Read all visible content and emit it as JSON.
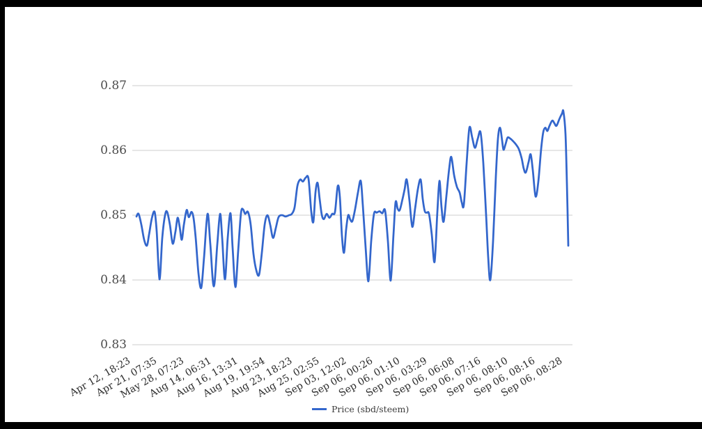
{
  "window": {
    "background": "#ffffff",
    "frame_color": "#000000"
  },
  "chart_data": {
    "type": "line",
    "title": "",
    "legend": {
      "position": "bottom",
      "entries": [
        {
          "label": "Price (sbd/steem)",
          "color": "#3366cc"
        }
      ]
    },
    "yAxis": {
      "tick_labels": [
        "0.87",
        "0.86",
        "0.85",
        "0.84",
        "0.83"
      ],
      "tick_values": [
        0.87,
        0.86,
        0.85,
        0.84,
        0.83
      ],
      "min": 0.83,
      "max": 0.87,
      "grid": true
    },
    "xAxis": {
      "tick_labels": [
        "Apr 12, 18:23",
        "Apr 21, 07:35",
        "May 28, 07:23",
        "Aug 14, 06:31",
        "Aug 16, 13:31",
        "Aug 19, 19:54",
        "Aug 23, 18:23",
        "Aug 25, 02:55",
        "Sep 03, 12:02",
        "Sep 06, 00:26",
        "Sep 06, 01:10",
        "Sep 06, 03:29",
        "Sep 06, 06:08",
        "Sep 06, 07:16",
        "Sep 06, 08:10",
        "Sep 06, 08:16",
        "Sep 06, 08:28"
      ],
      "rotation_deg": -30
    },
    "colors": {
      "grid": "#cccccc",
      "y_label": "#4c4c4c",
      "x_label": "#2b2b2b",
      "legend_label": "#3c3c3c"
    },
    "series": [
      {
        "name": "Price (sbd/steem)",
        "color": "#3366cc",
        "points": [
          [
            196,
            0.8498
          ],
          [
            199,
            0.8502
          ],
          [
            203,
            0.8485
          ],
          [
            207,
            0.8462
          ],
          [
            211,
            0.8453
          ],
          [
            214,
            0.847
          ],
          [
            218,
            0.8495
          ],
          [
            222,
            0.8505
          ],
          [
            225,
            0.8475
          ],
          [
            229,
            0.8401
          ],
          [
            233,
            0.8465
          ],
          [
            237,
            0.85
          ],
          [
            240,
            0.8505
          ],
          [
            244,
            0.8485
          ],
          [
            248,
            0.8456
          ],
          [
            252,
            0.8475
          ],
          [
            255,
            0.8496
          ],
          [
            258,
            0.8482
          ],
          [
            261,
            0.8462
          ],
          [
            264,
            0.8485
          ],
          [
            268,
            0.8508
          ],
          [
            271,
            0.8497
          ],
          [
            275,
            0.8505
          ],
          [
            278,
            0.8495
          ],
          [
            281,
            0.8465
          ],
          [
            285,
            0.841
          ],
          [
            289,
            0.8388
          ],
          [
            293,
            0.8435
          ],
          [
            298,
            0.8502
          ],
          [
            302,
            0.8455
          ],
          [
            307,
            0.839
          ],
          [
            312,
            0.8455
          ],
          [
            316,
            0.8502
          ],
          [
            319,
            0.8465
          ],
          [
            323,
            0.8401
          ],
          [
            327,
            0.8465
          ],
          [
            331,
            0.8503
          ],
          [
            334,
            0.845
          ],
          [
            338,
            0.8389
          ],
          [
            342,
            0.8445
          ],
          [
            346,
            0.8503
          ],
          [
            349,
            0.8509
          ],
          [
            352,
            0.8502
          ],
          [
            356,
            0.8505
          ],
          [
            360,
            0.8485
          ],
          [
            364,
            0.844
          ],
          [
            368,
            0.8415
          ],
          [
            372,
            0.8408
          ],
          [
            376,
            0.8442
          ],
          [
            380,
            0.8485
          ],
          [
            384,
            0.85
          ],
          [
            388,
            0.8485
          ],
          [
            392,
            0.8465
          ],
          [
            396,
            0.848
          ],
          [
            400,
            0.8497
          ],
          [
            405,
            0.85
          ],
          [
            410,
            0.8498
          ],
          [
            415,
            0.85
          ],
          [
            419,
            0.8502
          ],
          [
            423,
            0.8512
          ],
          [
            427,
            0.8545
          ],
          [
            431,
            0.8555
          ],
          [
            435,
            0.8552
          ],
          [
            439,
            0.8558
          ],
          [
            443,
            0.8556
          ],
          [
            447,
            0.8505
          ],
          [
            450,
            0.849
          ],
          [
            453,
            0.8535
          ],
          [
            456,
            0.855
          ],
          [
            459,
            0.8525
          ],
          [
            462,
            0.8501
          ],
          [
            465,
            0.8494
          ],
          [
            469,
            0.8502
          ],
          [
            473,
            0.8496
          ],
          [
            477,
            0.8502
          ],
          [
            481,
            0.8505
          ],
          [
            485,
            0.8545
          ],
          [
            488,
            0.8528
          ],
          [
            491,
            0.8468
          ],
          [
            494,
            0.8442
          ],
          [
            497,
            0.8478
          ],
          [
            500,
            0.85
          ],
          [
            503,
            0.8493
          ],
          [
            506,
            0.8491
          ],
          [
            510,
            0.851
          ],
          [
            514,
            0.8535
          ],
          [
            518,
            0.8553
          ],
          [
            521,
            0.8515
          ],
          [
            525,
            0.845
          ],
          [
            529,
            0.8398
          ],
          [
            533,
            0.846
          ],
          [
            537,
            0.8502
          ],
          [
            541,
            0.8504
          ],
          [
            545,
            0.8506
          ],
          [
            549,
            0.8503
          ],
          [
            553,
            0.8507
          ],
          [
            557,
            0.846
          ],
          [
            561,
            0.8399
          ],
          [
            565,
            0.847
          ],
          [
            568,
            0.852
          ],
          [
            571,
            0.851
          ],
          [
            574,
            0.8508
          ],
          [
            578,
            0.8525
          ],
          [
            581,
            0.854
          ],
          [
            584,
            0.8555
          ],
          [
            588,
            0.8522
          ],
          [
            592,
            0.8482
          ],
          [
            596,
            0.851
          ],
          [
            600,
            0.854
          ],
          [
            604,
            0.8555
          ],
          [
            607,
            0.8525
          ],
          [
            610,
            0.8506
          ],
          [
            613,
            0.8504
          ],
          [
            616,
            0.8502
          ],
          [
            620,
            0.847
          ],
          [
            624,
            0.8428
          ],
          [
            628,
            0.8505
          ],
          [
            631,
            0.8553
          ],
          [
            634,
            0.8512
          ],
          [
            637,
            0.849
          ],
          [
            641,
            0.853
          ],
          [
            645,
            0.8572
          ],
          [
            648,
            0.859
          ],
          [
            652,
            0.8562
          ],
          [
            656,
            0.8544
          ],
          [
            660,
            0.8535
          ],
          [
            663,
            0.852
          ],
          [
            666,
            0.8516
          ],
          [
            670,
            0.858
          ],
          [
            674,
            0.8635
          ],
          [
            678,
            0.862
          ],
          [
            682,
            0.8604
          ],
          [
            686,
            0.8618
          ],
          [
            690,
            0.8628
          ],
          [
            694,
            0.858
          ],
          [
            698,
            0.85
          ],
          [
            701,
            0.8435
          ],
          [
            704,
            0.84
          ],
          [
            708,
            0.846
          ],
          [
            712,
            0.856
          ],
          [
            715,
            0.8618
          ],
          [
            718,
            0.8635
          ],
          [
            721,
            0.8615
          ],
          [
            723,
            0.8601
          ],
          [
            726,
            0.861
          ],
          [
            729,
            0.862
          ],
          [
            733,
            0.8618
          ],
          [
            737,
            0.8614
          ],
          [
            741,
            0.8609
          ],
          [
            745,
            0.8602
          ],
          [
            749,
            0.8588
          ],
          [
            752,
            0.8572
          ],
          [
            755,
            0.8566
          ],
          [
            759,
            0.8582
          ],
          [
            762,
            0.8594
          ],
          [
            765,
            0.857
          ],
          [
            769,
            0.8529
          ],
          [
            773,
            0.8552
          ],
          [
            777,
            0.8602
          ],
          [
            780,
            0.8628
          ],
          [
            783,
            0.8635
          ],
          [
            786,
            0.863
          ],
          [
            789,
            0.8638
          ],
          [
            793,
            0.8646
          ],
          [
            796,
            0.8642
          ],
          [
            799,
            0.8638
          ],
          [
            803,
            0.8648
          ],
          [
            807,
            0.8657
          ],
          [
            809,
            0.866
          ],
          [
            812,
            0.8625
          ],
          [
            814,
            0.855
          ],
          [
            816,
            0.8453
          ]
        ]
      }
    ]
  }
}
